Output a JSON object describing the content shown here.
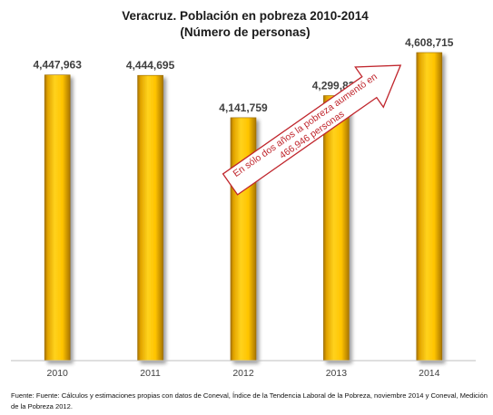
{
  "chart_data": {
    "type": "bar",
    "title": "Veracruz. Población en pobreza 2010-2014",
    "subtitle": "(Número de personas)",
    "categories": [
      "2010",
      "2011",
      "2012",
      "2013",
      "2014"
    ],
    "values": [
      4447963,
      4444695,
      4141759,
      4299839,
      4608715
    ],
    "value_labels": [
      "4,447,963",
      "4,444,695",
      "4,141,759",
      "4,299,839",
      "4,608,715"
    ],
    "ylim": [
      2400000,
      4608715
    ],
    "grid": false,
    "legend": "none",
    "bar_color": "#ffc000",
    "annotation": {
      "line1": "En sólo dos años la pobreza aumentó en",
      "line2": "466,946 personas",
      "color": "#c0262d"
    }
  },
  "source_note": "Fuente: Fuente: Cálculos y estimaciones propias con datos de Coneval, Índice de la Tendencia Laboral de la Pobreza, noviembre 2014 y Coneval, Medición de la Pobreza 2012."
}
